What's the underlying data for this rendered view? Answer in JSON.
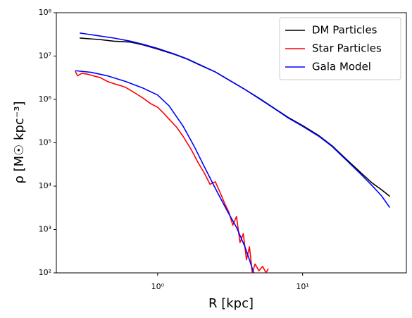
{
  "chart_data": {
    "type": "line",
    "xlabel": "R [kpc]",
    "ylabel": "ρ [M☉ kpc⁻³]",
    "xscale": "log",
    "yscale": "log",
    "xlim": [
      0.2,
      52
    ],
    "ylim": [
      100,
      100000000.0
    ],
    "xticks": [
      {
        "value": 1,
        "label": "10⁰"
      },
      {
        "value": 10,
        "label": "10¹"
      }
    ],
    "yticks": [
      {
        "value": 100,
        "label": "10²"
      },
      {
        "value": 1000,
        "label": "10³"
      },
      {
        "value": 10000,
        "label": "10⁴"
      },
      {
        "value": 100000,
        "label": "10⁵"
      },
      {
        "value": 1000000,
        "label": "10⁶"
      },
      {
        "value": 10000000,
        "label": "10⁷"
      },
      {
        "value": 100000000,
        "label": "10⁸"
      }
    ],
    "legend": "upper right",
    "series": [
      {
        "name": "DM Particles",
        "color": "#000000",
        "x": [
          0.29,
          0.4,
          0.5,
          0.65,
          0.8,
          1,
          1.3,
          1.6,
          2,
          2.5,
          3,
          4,
          5,
          6.5,
          8,
          10,
          13,
          16,
          20,
          25,
          30,
          35,
          40
        ],
        "values": [
          26000000.0,
          24000000.0,
          22000000.0,
          21000000.0,
          18000000.0,
          14500000.0,
          11000000.0,
          8500000.0,
          6000000.0,
          4300000.0,
          3000000.0,
          1700000.0,
          1070000.0,
          600000.0,
          380000.0,
          250000.0,
          145000.0,
          85000.0,
          42000.0,
          21000.0,
          12000.0,
          8300.0,
          5800.0
        ]
      },
      {
        "name": "Star Particles",
        "color": "#ff0000",
        "x": [
          0.27,
          0.28,
          0.3,
          0.33,
          0.36,
          0.4,
          0.45,
          0.5,
          0.55,
          0.6,
          0.7,
          0.8,
          0.9,
          1,
          1.1,
          1.2,
          1.35,
          1.5,
          1.7,
          1.9,
          2.1,
          2.3,
          2.5,
          2.7,
          2.9,
          3.1,
          3.3,
          3.5,
          3.7,
          3.9,
          4.1,
          4.3,
          4.5,
          4.7,
          5,
          5.3,
          5.6,
          5.8
        ],
        "values": [
          4500000.0,
          3500000.0,
          4000000.0,
          3800000.0,
          3500000.0,
          3200000.0,
          2600000.0,
          2300000.0,
          2100000.0,
          1900000.0,
          1400000.0,
          1050000.0,
          790000.0,
          660000.0,
          480000.0,
          350000.0,
          230000.0,
          140000.0,
          71000.0,
          35000.0,
          20000.0,
          11000.0,
          12600.0,
          7100.0,
          4000.0,
          2500.0,
          1260.0,
          2000.0,
          500,
          800,
          200,
          400,
          100,
          160,
          112,
          141,
          100,
          126
        ]
      },
      {
        "name": "Gala Model",
        "color": "#0000ff",
        "x": [
          0.29,
          0.4,
          0.5,
          0.65,
          0.8,
          1,
          1.3,
          1.6,
          2,
          2.5,
          3,
          4,
          5,
          6.5,
          8,
          10,
          13,
          16,
          20,
          25,
          30,
          35,
          40
        ],
        "values": [
          34000000.0,
          29000000.0,
          26000000.0,
          22000000.0,
          18500000.0,
          15000000.0,
          11200000.0,
          8600000.0,
          6100000.0,
          4300000.0,
          3000000.0,
          1700000.0,
          1050000.0,
          590000.0,
          370000.0,
          240000.0,
          140000.0,
          82000.0,
          40000.0,
          19500.0,
          10500.0,
          6000.0,
          3200.0
        ]
      },
      {
        "color": "#0000ff",
        "x": [
          0.27,
          0.35,
          0.45,
          0.6,
          0.8,
          1,
          1.2,
          1.5,
          1.8,
          2.1,
          2.5,
          3,
          3.5,
          4,
          4.3,
          4.6
        ],
        "values": [
          4600000.0,
          4200000.0,
          3500000.0,
          2600000.0,
          1800000.0,
          1260000.0,
          710000.0,
          240000.0,
          79000.0,
          28000.0,
          8900.0,
          2800.0,
          1120.0,
          400,
          200,
          100
        ]
      }
    ]
  }
}
